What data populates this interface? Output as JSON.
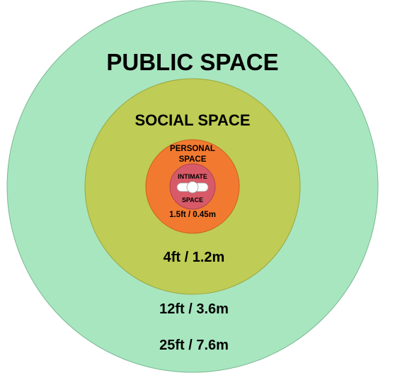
{
  "diagram": {
    "zones": {
      "public": {
        "title": "PUBLIC SPACE",
        "distance": "25ft / 7.6m",
        "color": "#a8e6c0"
      },
      "social": {
        "title": "SOCIAL SPACE",
        "distance": "12ft / 3.6m",
        "color": "#bfcc55"
      },
      "personal": {
        "title_line1": "PERSONAL",
        "title_line2": "SPACE",
        "distance": "4ft / 1.2m",
        "color": "#f27a30"
      },
      "intimate": {
        "title_line1": "INTIMATE",
        "title_line2": "SPACE",
        "distance": "1.5ft / 0.45m",
        "color": "#d85a68"
      }
    },
    "center_icon": "person-top-view-icon"
  }
}
